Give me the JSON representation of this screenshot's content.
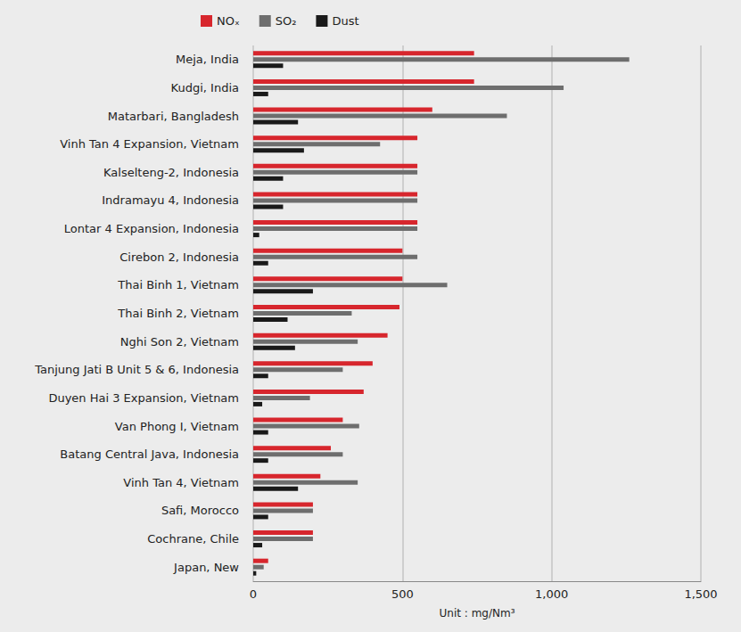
{
  "chart_data": {
    "type": "bar",
    "orientation": "horizontal",
    "xlabel": "Unit : mg/Nm³",
    "categories": [
      "Meja, India",
      "Kudgi, India",
      "Matarbari, Bangladesh",
      "Vinh Tan 4 Expansion, Vietnam",
      "Kalselteng-2, Indonesia",
      "Indramayu 4, Indonesia",
      "Lontar 4 Expansion, Indonesia",
      "Cirebon 2, Indonesia",
      "Thai Binh 1, Vietnam",
      "Thai Binh 2, Vietnam",
      "Nghi Son 2, Vietnam",
      "Tanjung Jati B Unit 5 & 6, Indonesia",
      "Duyen Hai 3 Expansion, Vietnam",
      "Van Phong I, Vietnam",
      "Batang Central Java, Indonesia",
      "Vinh Tan 4, Vietnam",
      "Safi, Morocco",
      "Cochrane, Chile",
      "Japan, New"
    ],
    "series": [
      {
        "name": "NOₓ",
        "color": "#d7262d",
        "values": [
          740,
          740,
          600,
          550,
          550,
          550,
          550,
          500,
          500,
          490,
          450,
          400,
          370,
          300,
          260,
          225,
          200,
          200,
          50
        ]
      },
      {
        "name": "SO₂",
        "color": "#6e6e6e",
        "values": [
          1260,
          1040,
          850,
          425,
          550,
          550,
          550,
          550,
          650,
          330,
          350,
          300,
          190,
          355,
          300,
          350,
          200,
          200,
          35
        ]
      },
      {
        "name": "Dust",
        "color": "#1a1a1a",
        "values": [
          100,
          50,
          150,
          170,
          100,
          100,
          20,
          50,
          200,
          115,
          140,
          50,
          30,
          50,
          50,
          150,
          50,
          30,
          10
        ]
      }
    ],
    "xlim": [
      0,
      1500
    ],
    "xticks": [
      0,
      500,
      {
        "value": 1000,
        "label": "1,000"
      },
      {
        "value": 1500,
        "label": "1,500"
      }
    ],
    "grid": true,
    "legend": "top-left"
  }
}
